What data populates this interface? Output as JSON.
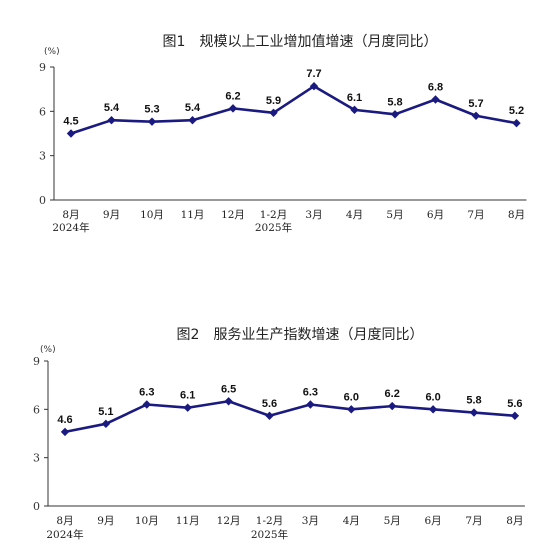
{
  "chart_data": [
    {
      "type": "line",
      "title": "图1　规模以上工业增加值增速（月度同比）",
      "unit": "(%)",
      "categories": [
        "8月",
        "9月",
        "10月",
        "11月",
        "12月",
        "1-2月",
        "3月",
        "4月",
        "5月",
        "6月",
        "7月",
        "8月"
      ],
      "year_labels": [
        "2024年",
        "",
        "",
        "",
        "",
        "2025年",
        "",
        "",
        "",
        "",
        "",
        ""
      ],
      "values": [
        4.5,
        5.4,
        5.3,
        5.4,
        6.2,
        5.9,
        7.7,
        6.1,
        5.8,
        6.8,
        5.7,
        5.2
      ],
      "value_labels": [
        "4.5",
        "5.4",
        "5.3",
        "5.4",
        "6.2",
        "5.9",
        "7.7",
        "6.1",
        "5.8",
        "6.8",
        "5.7",
        "5.2"
      ],
      "ylim": [
        0,
        9
      ],
      "yticks": [
        "0",
        "3",
        "6",
        "9"
      ],
      "grid": false,
      "line_color": "#1a1a80",
      "marker": "diamond"
    },
    {
      "type": "line",
      "title": "图2　服务业生产指数增速（月度同比）",
      "unit": "(%)",
      "categories": [
        "8月",
        "9月",
        "10月",
        "11月",
        "12月",
        "1-2月",
        "3月",
        "4月",
        "5月",
        "6月",
        "7月",
        "8月"
      ],
      "year_labels": [
        "2024年",
        "",
        "",
        "",
        "",
        "2025年",
        "",
        "",
        "",
        "",
        "",
        ""
      ],
      "values": [
        4.6,
        5.1,
        6.3,
        6.1,
        6.5,
        5.6,
        6.3,
        6.0,
        6.2,
        6.0,
        5.8,
        5.6
      ],
      "value_labels": [
        "4.6",
        "5.1",
        "6.3",
        "6.1",
        "6.5",
        "5.6",
        "6.3",
        "6.0",
        "6.2",
        "6.0",
        "5.8",
        "5.6"
      ],
      "ylim": [
        0,
        9
      ],
      "yticks": [
        "0",
        "3",
        "6",
        "9"
      ],
      "grid": false,
      "line_color": "#1a1a80",
      "marker": "diamond"
    }
  ]
}
